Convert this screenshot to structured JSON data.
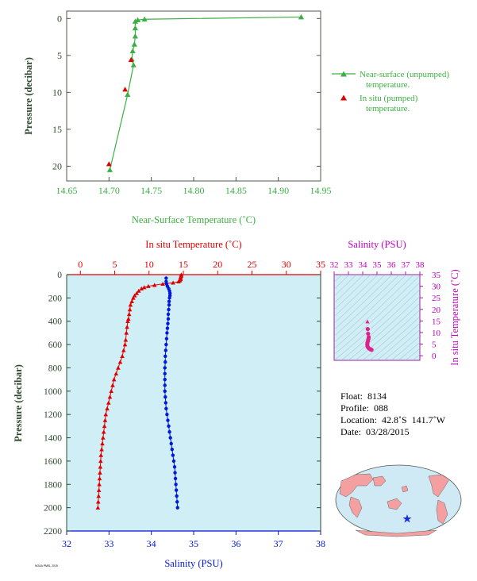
{
  "chart_data": [
    {
      "type": "line",
      "xlabel": "Near-Surface Temperature (˚C)",
      "ylabel": "Pressure (decibar)",
      "xlim": [
        14.65,
        14.95
      ],
      "ylim": [
        22,
        -1
      ],
      "x_ticks": [
        "14.65",
        "14.70",
        "14.75",
        "14.80",
        "14.85",
        "14.90",
        "14.95"
      ],
      "y_ticks": [
        "0",
        "5",
        "10",
        "15",
        "20"
      ],
      "series": [
        {
          "name": "Near-surface (unpumped) temperature.",
          "color": "#3cb043",
          "marker": "triangle",
          "points": [
            [
              14.927,
              -0.2
            ],
            [
              14.742,
              0.1
            ],
            [
              14.734,
              0.2
            ],
            [
              14.731,
              0.4
            ],
            [
              14.731,
              1.3
            ],
            [
              14.731,
              2.4
            ],
            [
              14.73,
              3.5
            ],
            [
              14.728,
              4.4
            ],
            [
              14.727,
              5.5
            ],
            [
              14.729,
              6.3
            ],
            [
              14.722,
              10.3
            ],
            [
              14.701,
              20.5
            ]
          ]
        },
        {
          "name": "In situ (pumped) temperature.",
          "color": "#e00000",
          "marker": "triangle",
          "points": [
            [
              14.726,
              5.6
            ],
            [
              14.719,
              9.6
            ],
            [
              14.7,
              19.7
            ]
          ]
        }
      ],
      "legend": [
        "Near-surface (unpumped)",
        "temperature.",
        "In situ (pumped)",
        "temperature."
      ]
    },
    {
      "type": "scatter",
      "top_axis_label": "In situ Temperature (˚C)",
      "bottom_axis_label": "Salinity (PSU)",
      "ylabel": "Pressure (decibar)",
      "temp_lim": [
        -2,
        35
      ],
      "sal_lim": [
        32,
        38
      ],
      "ylim": [
        2200,
        0
      ],
      "temp_ticks": [
        "0",
        "5",
        "10",
        "15",
        "20",
        "25",
        "30",
        "35"
      ],
      "sal_ticks": [
        "32",
        "33",
        "34",
        "35",
        "36",
        "37",
        "38"
      ],
      "y_ticks": [
        "0",
        "200",
        "400",
        "600",
        "800",
        "1000",
        "1200",
        "1400",
        "1600",
        "1800",
        "2000",
        "2200"
      ],
      "temperature": {
        "color": "#e00000",
        "points": [
          [
            14.7,
            0
          ],
          [
            14.7,
            10
          ],
          [
            14.6,
            20
          ],
          [
            14.6,
            30
          ],
          [
            14.6,
            40
          ],
          [
            14.5,
            50
          ],
          [
            14.3,
            60
          ],
          [
            13.5,
            70
          ],
          [
            12.0,
            80
          ],
          [
            10.8,
            90
          ],
          [
            9.9,
            100
          ],
          [
            9.3,
            110
          ],
          [
            8.9,
            120
          ],
          [
            8.5,
            140
          ],
          [
            8.2,
            160
          ],
          [
            7.9,
            180
          ],
          [
            7.7,
            200
          ],
          [
            7.5,
            230
          ],
          [
            7.3,
            260
          ],
          [
            7.2,
            300
          ],
          [
            7.1,
            340
          ],
          [
            7.0,
            380
          ],
          [
            6.9,
            400
          ],
          [
            6.8,
            450
          ],
          [
            6.7,
            500
          ],
          [
            6.6,
            560
          ],
          [
            6.5,
            600
          ],
          [
            6.3,
            650
          ],
          [
            6.1,
            700
          ],
          [
            5.8,
            750
          ],
          [
            5.5,
            800
          ],
          [
            5.2,
            850
          ],
          [
            4.9,
            900
          ],
          [
            4.7,
            950
          ],
          [
            4.5,
            1000
          ],
          [
            4.3,
            1050
          ],
          [
            4.1,
            1100
          ],
          [
            3.9,
            1150
          ],
          [
            3.7,
            1200
          ],
          [
            3.6,
            1250
          ],
          [
            3.5,
            1300
          ],
          [
            3.4,
            1350
          ],
          [
            3.3,
            1400
          ],
          [
            3.2,
            1450
          ],
          [
            3.1,
            1500
          ],
          [
            3.0,
            1550
          ],
          [
            2.95,
            1600
          ],
          [
            2.9,
            1650
          ],
          [
            2.85,
            1700
          ],
          [
            2.8,
            1750
          ],
          [
            2.75,
            1800
          ],
          [
            2.7,
            1850
          ],
          [
            2.65,
            1900
          ],
          [
            2.6,
            1950
          ],
          [
            2.55,
            2000
          ]
        ]
      },
      "salinity": {
        "color": "#0018d8",
        "points": [
          [
            34.35,
            30
          ],
          [
            34.35,
            60
          ],
          [
            34.36,
            80
          ],
          [
            34.38,
            100
          ],
          [
            34.41,
            120
          ],
          [
            34.43,
            140
          ],
          [
            34.44,
            160
          ],
          [
            34.44,
            180
          ],
          [
            34.43,
            200
          ],
          [
            34.42,
            230
          ],
          [
            34.42,
            260
          ],
          [
            34.41,
            300
          ],
          [
            34.4,
            340
          ],
          [
            34.4,
            380
          ],
          [
            34.39,
            420
          ],
          [
            34.38,
            460
          ],
          [
            34.37,
            500
          ],
          [
            34.36,
            550
          ],
          [
            34.35,
            600
          ],
          [
            34.34,
            650
          ],
          [
            34.33,
            700
          ],
          [
            34.33,
            750
          ],
          [
            34.32,
            800
          ],
          [
            34.32,
            850
          ],
          [
            34.32,
            900
          ],
          [
            34.32,
            950
          ],
          [
            34.32,
            1000
          ],
          [
            34.33,
            1050
          ],
          [
            34.34,
            1100
          ],
          [
            34.35,
            1150
          ],
          [
            34.37,
            1200
          ],
          [
            34.39,
            1250
          ],
          [
            34.41,
            1300
          ],
          [
            34.43,
            1350
          ],
          [
            34.45,
            1400
          ],
          [
            34.47,
            1450
          ],
          [
            34.49,
            1500
          ],
          [
            34.51,
            1550
          ],
          [
            34.53,
            1600
          ],
          [
            34.55,
            1650
          ],
          [
            34.56,
            1700
          ],
          [
            34.57,
            1750
          ],
          [
            34.58,
            1800
          ],
          [
            34.59,
            1850
          ],
          [
            34.6,
            1900
          ],
          [
            34.61,
            1950
          ],
          [
            34.62,
            2000
          ]
        ]
      }
    },
    {
      "type": "scatter",
      "title": "Salinity (PSU)",
      "ylabel": "In situ Temperature (˚C)",
      "xlim": [
        32,
        38
      ],
      "ylim": [
        -2,
        35
      ],
      "x_ticks": [
        "32",
        "33",
        "34",
        "35",
        "36",
        "37",
        "38"
      ],
      "y_ticks": [
        "0",
        "5",
        "10",
        "15",
        "20",
        "25",
        "30",
        "35"
      ],
      "color": "#e0218a",
      "points": [
        [
          34.33,
          14.7
        ],
        [
          34.35,
          11.5
        ],
        [
          34.38,
          9.5
        ],
        [
          34.42,
          8.0
        ],
        [
          34.4,
          7.2
        ],
        [
          34.37,
          6.4
        ],
        [
          34.33,
          5.6
        ],
        [
          34.32,
          4.9
        ],
        [
          34.33,
          4.2
        ],
        [
          34.37,
          3.6
        ],
        [
          34.43,
          3.2
        ],
        [
          34.5,
          2.9
        ],
        [
          34.57,
          2.7
        ],
        [
          34.62,
          2.55
        ]
      ]
    }
  ],
  "float_info": {
    "float": "Float:  8134",
    "profile": "Profile:  088",
    "location": "Location:  42.8˚S  141.7˚W",
    "date": "Date:  03/28/2015"
  },
  "map": {
    "land_color": "#f4a0a0",
    "ocean_color": "#cfeaf4",
    "marker": "star"
  },
  "footnote": "NOAA PMEL 2015"
}
